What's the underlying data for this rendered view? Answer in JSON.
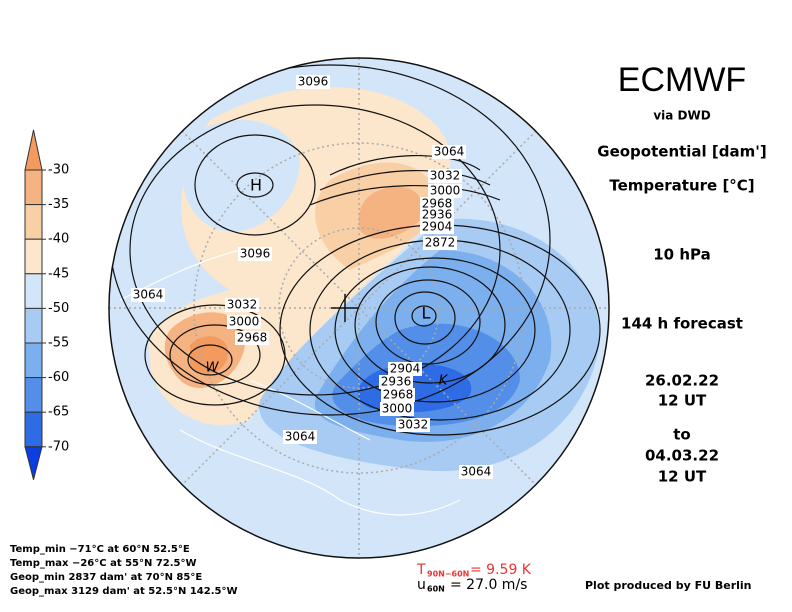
{
  "header": {
    "title": "ECMWF",
    "source": "via DWD"
  },
  "fields": [
    "Geopotential [dam']",
    "Temperature [°C]"
  ],
  "level": "10 hPa",
  "forecast": "144 h forecast",
  "init": {
    "date": "26.02.22",
    "time": "12 UT"
  },
  "to": "to",
  "valid": {
    "date": "04.03.22",
    "time": "12 UT"
  },
  "colorbar": {
    "ticks": [
      -30,
      -35,
      -40,
      -45,
      -50,
      -55,
      -60,
      -65,
      -70
    ],
    "colors": [
      "#f39a5e",
      "#f6b382",
      "#f9cfa6",
      "#fce6cc",
      "#d3e5f8",
      "#a8cbf3",
      "#7cafee",
      "#538fe9",
      "#2e6ce6",
      "#0a3ee2"
    ]
  },
  "map": {
    "pressure_labels": [
      "H",
      "L"
    ],
    "wave_labels": [
      "W",
      "K"
    ],
    "contour_labels": [
      "3096",
      "3064",
      "3032",
      "3000",
      "2968",
      "2936",
      "2904",
      "2872",
      "3096",
      "3064",
      "3032",
      "3000",
      "2968",
      "2904",
      "2936",
      "2968",
      "3000",
      "3032",
      "3064",
      "3064"
    ]
  },
  "stats": [
    "Temp_min −71°C at 60°N 52.5°E",
    "Temp_max −26°C at 55°N 72.5°W",
    "Geop_min 2837 dam' at 70°N 85°E",
    "Geop_max 3129 dam' at 52.5°N 142.5°W"
  ],
  "footer": {
    "t_symbol": "T",
    "t_sub": "90N−60N",
    "t_value": "= 9.59 K",
    "u_symbol": "u",
    "u_sub": "60N",
    "u_value": "= 27.0 m/s",
    "credit": "Plot produced by FU Berlin"
  }
}
